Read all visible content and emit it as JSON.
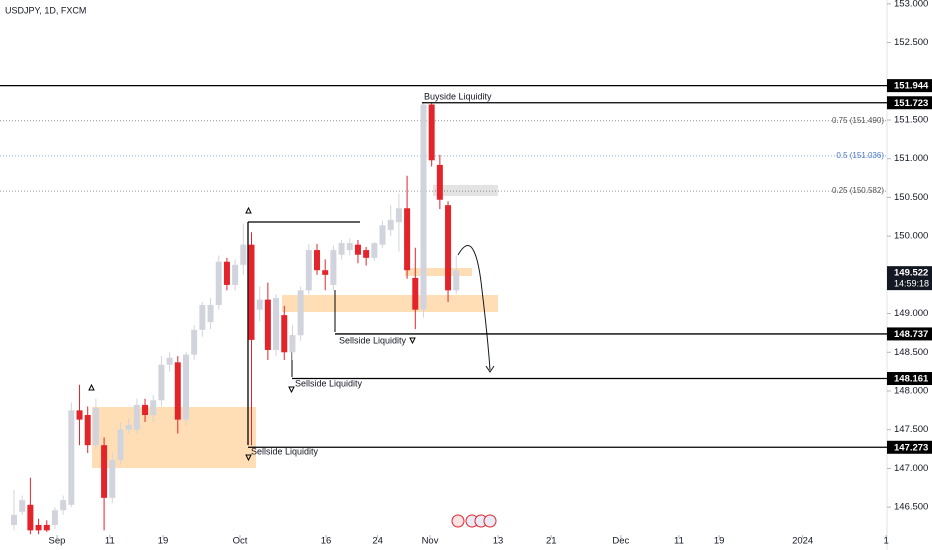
{
  "chart_data": {
    "type": "candlestick",
    "title": "USDJPY, 1D, FXCM",
    "x": [
      0,
      1,
      2,
      3,
      4,
      5,
      6,
      7,
      8,
      9,
      10,
      11,
      12,
      13,
      14,
      15,
      16,
      17,
      18,
      19,
      20,
      21,
      22,
      23,
      24,
      25,
      26,
      27,
      28,
      29,
      30,
      31,
      32,
      33,
      34,
      35,
      36,
      37,
      38,
      39,
      40,
      41,
      42,
      43,
      44,
      45,
      46,
      47,
      48,
      49,
      50,
      51,
      52,
      53,
      54
    ],
    "open": [
      146.27,
      146.44,
      146.53,
      146.27,
      146.27,
      146.27,
      146.46,
      146.53,
      147.75,
      147.69,
      147.3,
      147.3,
      146.62,
      147.11,
      147.5,
      147.5,
      147.82,
      147.69,
      147.88,
      148.34,
      148.37,
      147.63,
      148.47,
      148.79,
      148.89,
      149.11,
      149.67,
      149.37,
      149.63,
      149.89,
      149.05,
      149.18,
      148.53,
      148.98,
      148.5,
      148.72,
      149.3,
      149.82,
      149.56,
      149.37,
      149.76,
      149.82,
      149.89,
      149.82,
      149.72,
      149.89,
      150.08,
      150.18,
      150.36,
      149.46,
      149.05,
      151.7,
      150.92,
      150.4,
      149.3
    ],
    "high": [
      146.72,
      146.65,
      146.88,
      146.35,
      146.33,
      146.5,
      146.65,
      147.85,
      148.08,
      147.8,
      147.9,
      147.4,
      147.2,
      147.6,
      147.65,
      147.9,
      147.9,
      147.95,
      148.45,
      148.5,
      148.45,
      148.5,
      148.85,
      149.15,
      149.2,
      149.75,
      149.72,
      149.7,
      150.16,
      150.05,
      149.35,
      149.4,
      149.25,
      149.1,
      148.85,
      149.35,
      149.9,
      149.9,
      149.7,
      149.88,
      149.95,
      149.97,
      149.95,
      149.86,
      149.92,
      150.2,
      150.4,
      150.55,
      150.78,
      149.85,
      151.72,
      151.72,
      151.05,
      150.45,
      149.75
    ],
    "low": [
      146.2,
      146.4,
      146.15,
      146.15,
      146.18,
      146.22,
      146.4,
      146.5,
      147.3,
      147.2,
      147.25,
      146.2,
      146.55,
      147.05,
      147.45,
      147.45,
      147.6,
      147.6,
      147.8,
      148.25,
      147.45,
      147.55,
      148.4,
      148.7,
      148.8,
      149.05,
      149.3,
      149.3,
      149.5,
      147.3,
      148.9,
      148.4,
      148.45,
      148.4,
      148.4,
      148.65,
      149.25,
      149.5,
      149.3,
      149.3,
      149.7,
      149.75,
      149.65,
      149.62,
      149.68,
      149.85,
      150.0,
      149.8,
      149.45,
      148.8,
      148.95,
      150.9,
      150.35,
      149.15,
      149.25
    ],
    "close": [
      146.4,
      146.59,
      146.2,
      146.2,
      146.2,
      146.46,
      146.59,
      147.75,
      147.63,
      147.3,
      147.78,
      146.62,
      147.11,
      147.5,
      147.56,
      147.82,
      147.69,
      147.88,
      148.34,
      148.43,
      147.63,
      148.47,
      148.79,
      149.11,
      149.11,
      149.67,
      149.37,
      149.63,
      149.89,
      148.66,
      149.18,
      148.53,
      149.2,
      148.5,
      148.72,
      149.3,
      149.82,
      149.56,
      149.5,
      149.82,
      149.91,
      149.91,
      149.76,
      149.72,
      149.91,
      150.14,
      150.21,
      150.36,
      149.56,
      149.05,
      151.7,
      150.98,
      150.47,
      149.3,
      149.56
    ],
    "up_color": "#d1d4dc",
    "down_color": "#e3242b",
    "xlim": [
      -1.71,
      106.6
    ],
    "xticks": [
      {
        "value": 5.25,
        "label": "Sep"
      },
      {
        "value": 11.7,
        "label": "11"
      },
      {
        "value": 18.2,
        "label": "19"
      },
      {
        "value": 27.6,
        "label": "Oct"
      },
      {
        "value": 38.1,
        "label": "16"
      },
      {
        "value": 44.4,
        "label": "24"
      },
      {
        "value": 50.8,
        "label": "Nov"
      },
      {
        "value": 59.1,
        "label": "13"
      },
      {
        "value": 65.6,
        "label": "21"
      },
      {
        "value": 74.1,
        "label": "Dec"
      },
      {
        "value": 81.2,
        "label": "11"
      },
      {
        "value": 86.1,
        "label": "19"
      },
      {
        "value": 96.3,
        "label": "2024"
      },
      {
        "value": 106.5,
        "label": "1"
      }
    ],
    "ylim": [
      146.14,
      153.05
    ],
    "yticks": [
      {
        "value": 153,
        "label": "153.000"
      },
      {
        "value": 152.5,
        "label": "152.500"
      },
      {
        "value": 151.5,
        "label": "151.500"
      },
      {
        "value": 151,
        "label": "151.000"
      },
      {
        "value": 150.5,
        "label": "150.500"
      },
      {
        "value": 150,
        "label": "150.000"
      },
      {
        "value": 149,
        "label": "149.000"
      },
      {
        "value": 148.5,
        "label": "148.500"
      },
      {
        "value": 148,
        "label": "148.000"
      },
      {
        "value": 147.5,
        "label": "147.500"
      },
      {
        "value": 147,
        "label": "147.000"
      },
      {
        "value": 146.5,
        "label": "146.500"
      }
    ],
    "levels": [
      {
        "value": 151.944,
        "label": "151.944"
      },
      {
        "value": 151.723,
        "label": "151.723"
      },
      {
        "value": 148.737,
        "label": "148.737"
      },
      {
        "value": 148.161,
        "label": "148.161"
      },
      {
        "value": 147.273,
        "label": "147.273"
      }
    ],
    "fib": [
      {
        "value": 151.49,
        "label": "0.75 (151.490)",
        "color": "#555555"
      },
      {
        "value": 151.036,
        "label": "0.5 (151.036)",
        "color": "#4a78c8"
      },
      {
        "value": 150.582,
        "label": "0.25 (150.582)",
        "color": "#555555"
      }
    ],
    "last_price": {
      "value": 149.522,
      "label": "149.522",
      "countdown": "14:59:18"
    },
    "annotations": [
      "Buyside Liquidity",
      "Sellside Liquidity",
      "Sellside Liquidity",
      "Sellside Liquidity"
    ]
  }
}
